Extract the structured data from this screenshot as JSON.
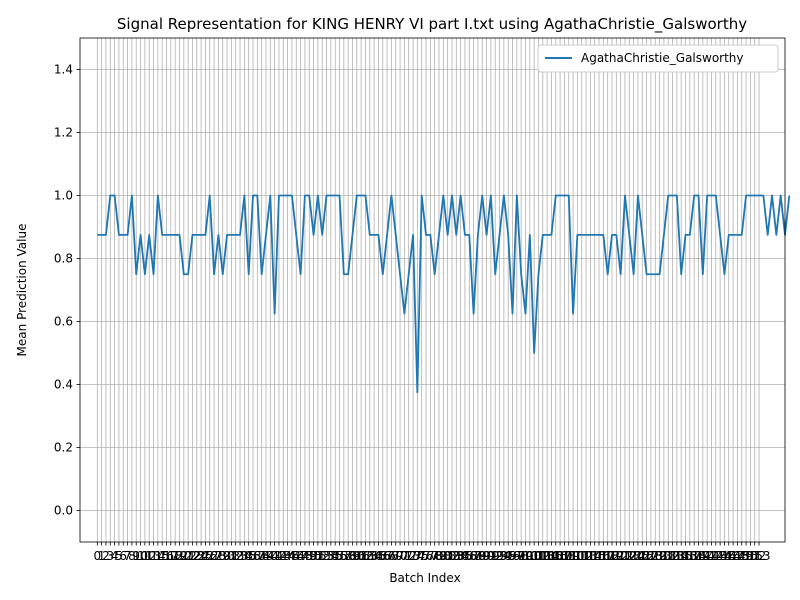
{
  "chart_data": {
    "type": "line",
    "title": "Signal Representation for KING HENRY VI part I.txt using AgathaChristie_Galsworthy",
    "xlabel": "Batch Index",
    "ylabel": "Mean Prediction Value",
    "xlim": [
      -4,
      159
    ],
    "ylim": [
      -0.1,
      1.5
    ],
    "yticks": [
      0.0,
      0.2,
      0.4,
      0.6,
      0.8,
      1.0,
      1.2,
      1.4
    ],
    "xtick_count": 154,
    "grid": true,
    "legend_position": "upper-right",
    "series": [
      {
        "name": "AgathaChristie_Galsworthy",
        "color": "#1f77b4",
        "values": [
          0.875,
          0.875,
          0.875,
          1.0,
          1.0,
          0.875,
          0.875,
          0.875,
          1.0,
          0.75,
          0.875,
          0.75,
          0.875,
          0.75,
          1.0,
          0.875,
          0.875,
          0.875,
          0.875,
          0.875,
          0.75,
          0.75,
          0.875,
          0.875,
          0.875,
          0.875,
          1.0,
          0.75,
          0.875,
          0.75,
          0.875,
          0.875,
          0.875,
          0.875,
          1.0,
          0.75,
          1.0,
          1.0,
          0.75,
          0.875,
          1.0,
          0.625,
          1.0,
          1.0,
          1.0,
          1.0,
          0.875,
          0.75,
          1.0,
          1.0,
          0.875,
          1.0,
          0.875,
          1.0,
          1.0,
          1.0,
          1.0,
          0.75,
          0.75,
          0.875,
          1.0,
          1.0,
          1.0,
          0.875,
          0.875,
          0.875,
          0.75,
          0.875,
          1.0,
          0.875,
          0.75,
          0.625,
          0.75,
          0.875,
          0.375,
          1.0,
          0.875,
          0.875,
          0.75,
          0.875,
          1.0,
          0.875,
          1.0,
          0.875,
          1.0,
          0.875,
          0.875,
          0.625,
          0.875,
          1.0,
          0.875,
          1.0,
          0.75,
          0.875,
          1.0,
          0.875,
          0.625,
          1.0,
          0.75,
          0.625,
          0.875,
          0.5,
          0.75,
          0.875,
          0.875,
          0.875,
          1.0,
          1.0,
          1.0,
          1.0,
          0.625,
          0.875,
          0.875,
          0.875,
          0.875,
          0.875,
          0.875,
          0.875,
          0.75,
          0.875,
          0.875,
          0.75,
          1.0,
          0.875,
          0.75,
          1.0,
          0.875,
          0.75,
          0.75,
          0.75,
          0.75,
          0.875,
          1.0,
          1.0,
          1.0,
          0.75,
          0.875,
          0.875,
          1.0,
          1.0,
          0.75,
          1.0,
          1.0,
          1.0,
          0.875,
          0.75,
          0.875,
          0.875,
          0.875,
          0.875,
          1.0,
          1.0,
          1.0,
          1.0,
          1.0,
          0.875,
          1.0,
          0.875,
          1.0,
          0.875,
          1.0
        ]
      }
    ]
  }
}
